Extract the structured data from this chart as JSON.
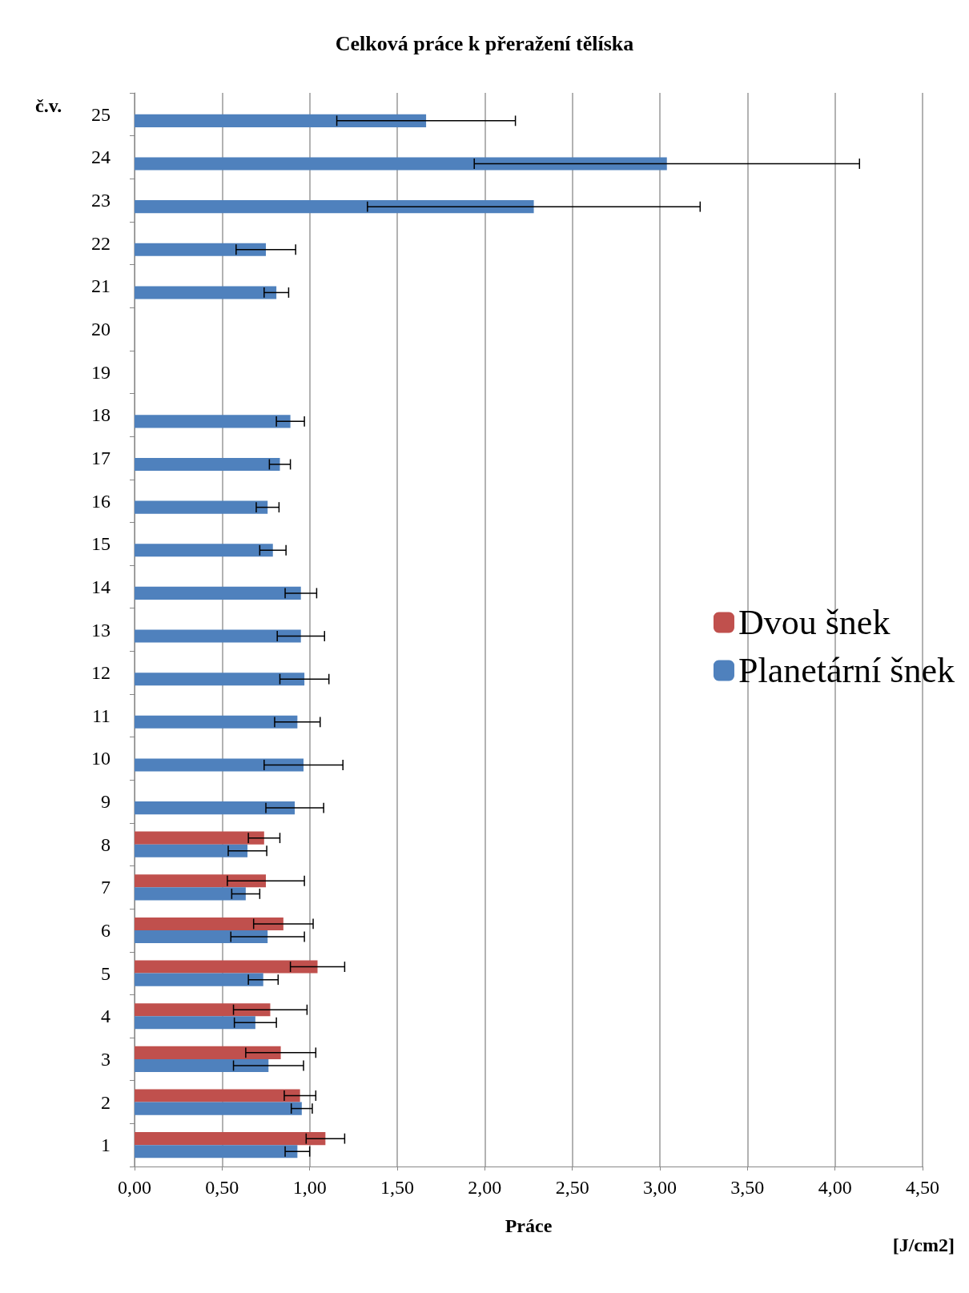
{
  "chart_data": {
    "type": "bar",
    "orientation": "horizontal",
    "title": "Celková práce k přeražení tělíska",
    "xlabel": "Práce",
    "ylabel": "č.v.",
    "annotations": [
      "[J/cm2]"
    ],
    "categories": [
      "25",
      "24",
      "23",
      "22",
      "21",
      "20",
      "19",
      "18",
      "17",
      "16",
      "15",
      "14",
      "13",
      "12",
      "11",
      "10",
      "9",
      "8",
      "7",
      "6",
      "5",
      "4",
      "3",
      "2",
      "1"
    ],
    "series": [
      {
        "name": "Dvou šnek",
        "color": "#c0504d",
        "values": [
          null,
          null,
          null,
          null,
          null,
          null,
          null,
          null,
          null,
          null,
          null,
          null,
          null,
          null,
          null,
          null,
          null,
          0.74,
          0.75,
          0.85,
          1.045,
          0.775,
          0.835,
          0.945,
          1.09
        ],
        "errors": [
          null,
          null,
          null,
          null,
          null,
          null,
          null,
          null,
          null,
          null,
          null,
          null,
          null,
          null,
          null,
          null,
          null,
          0.09,
          0.22,
          0.17,
          0.155,
          0.21,
          0.2,
          0.09,
          0.11
        ]
      },
      {
        "name": "Planetární šnek",
        "color": "#4f81bd",
        "values": [
          1.665,
          3.04,
          2.28,
          0.75,
          0.81,
          null,
          null,
          0.89,
          0.83,
          0.76,
          0.79,
          0.95,
          0.95,
          0.97,
          0.93,
          0.965,
          0.915,
          0.645,
          0.635,
          0.76,
          0.735,
          0.69,
          0.765,
          0.955,
          0.93
        ],
        "errors": [
          0.51,
          1.1,
          0.95,
          0.17,
          0.07,
          null,
          null,
          0.08,
          0.06,
          0.065,
          0.075,
          0.09,
          0.135,
          0.14,
          0.13,
          0.225,
          0.165,
          0.11,
          0.08,
          0.21,
          0.085,
          0.12,
          0.2,
          0.06,
          0.07
        ]
      }
    ],
    "xlim": [
      0,
      4.5
    ],
    "xticks": [
      {
        "value": 0,
        "label": "0,00"
      },
      {
        "value": 0.5,
        "label": "0,50"
      },
      {
        "value": 1,
        "label": "1,00"
      },
      {
        "value": 1.5,
        "label": "1,50"
      },
      {
        "value": 2,
        "label": "2,00"
      },
      {
        "value": 2.5,
        "label": "2,50"
      },
      {
        "value": 3,
        "label": "3,00"
      },
      {
        "value": 3.5,
        "label": "3,50"
      },
      {
        "value": 4,
        "label": "4,00"
      },
      {
        "value": 4.5,
        "label": "4,50"
      }
    ],
    "grid": "x",
    "legend": "right"
  }
}
